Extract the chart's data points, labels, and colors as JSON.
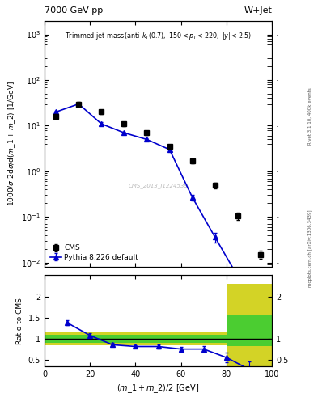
{
  "cms_x": [
    5,
    15,
    25,
    35,
    45,
    55,
    65,
    75,
    85,
    95
  ],
  "cms_y": [
    16,
    30,
    20,
    11,
    7.0,
    3.5,
    1.7,
    0.5,
    0.105,
    0.015
  ],
  "cms_yerr": [
    2.0,
    3.0,
    2.0,
    1.2,
    0.8,
    0.4,
    0.2,
    0.07,
    0.018,
    0.003
  ],
  "pythia_x": [
    5,
    15,
    25,
    35,
    45,
    55,
    65,
    75,
    85
  ],
  "pythia_y": [
    20,
    30,
    11,
    7.0,
    5.0,
    3.0,
    0.27,
    0.036,
    0.005
  ],
  "pythia_yerr_lo": [
    1.0,
    1.5,
    0.8,
    0.4,
    0.3,
    0.25,
    0.04,
    0.008,
    0.001
  ],
  "pythia_yerr_hi": [
    1.0,
    1.5,
    0.8,
    0.4,
    0.3,
    0.25,
    0.04,
    0.008,
    0.001
  ],
  "ratio_x": [
    10,
    20,
    30,
    40,
    50,
    60,
    70,
    80,
    90
  ],
  "ratio_y": [
    1.38,
    1.08,
    0.86,
    0.82,
    0.82,
    0.76,
    0.76,
    0.56,
    0.28
  ],
  "ratio_yerr_lo": [
    0.06,
    0.05,
    0.04,
    0.03,
    0.04,
    0.05,
    0.06,
    0.12,
    0.18
  ],
  "ratio_yerr_hi": [
    0.06,
    0.05,
    0.04,
    0.03,
    0.04,
    0.05,
    0.06,
    0.12,
    0.18
  ],
  "yellow_band_x_edges": [
    0,
    10,
    20,
    30,
    40,
    50,
    60,
    70,
    80,
    100
  ],
  "yellow_band_ylo": [
    0.85,
    0.85,
    0.85,
    0.85,
    0.85,
    0.85,
    0.85,
    0.85,
    0.35,
    0.35
  ],
  "yellow_band_yhi": [
    1.15,
    1.15,
    1.15,
    1.15,
    1.15,
    1.15,
    1.15,
    1.15,
    2.3,
    2.3
  ],
  "green_band_x_edges": [
    0,
    10,
    20,
    30,
    40,
    50,
    60,
    70,
    80,
    100
  ],
  "green_ylo": [
    0.9,
    0.9,
    0.9,
    0.9,
    0.9,
    0.9,
    0.9,
    0.9,
    0.82,
    0.82
  ],
  "green_yhi": [
    1.1,
    1.1,
    1.1,
    1.1,
    1.1,
    1.1,
    1.1,
    1.1,
    1.55,
    1.55
  ],
  "title_main": "7000 GeV pp",
  "title_right": "W+Jet",
  "annotation": "Trimmed jet mass$_{\\,(\\mathrm{anti}\\text{-}k_{T}(0.7),\\ 150{<}p_{T}{<}220,\\ |y|{<}2.5)}$",
  "ylabel_main": "$1000/\\sigma\\ 2\\mathrm{d}\\sigma/\\mathrm{d}(m\\_1 + m\\_2)\\ [1/\\mathrm{GeV}]$",
  "ylabel_ratio": "Ratio to CMS",
  "xlabel": "$(m\\_1 + m\\_2) / 2\\ [\\mathrm{GeV}]$",
  "watermark": "CMS_2013_I1224539",
  "rivet_text": "Rivet 3.1.10, 400k events",
  "arxiv_text": "mcplots.cern.ch [arXiv:1306.3439]",
  "blue_color": "#0000cc",
  "cms_color": "#000000",
  "xlim": [
    0,
    100
  ],
  "ylim_main_lo": 0.008,
  "ylim_main_hi": 2000,
  "ylim_ratio_lo": 0.35,
  "ylim_ratio_hi": 2.5
}
